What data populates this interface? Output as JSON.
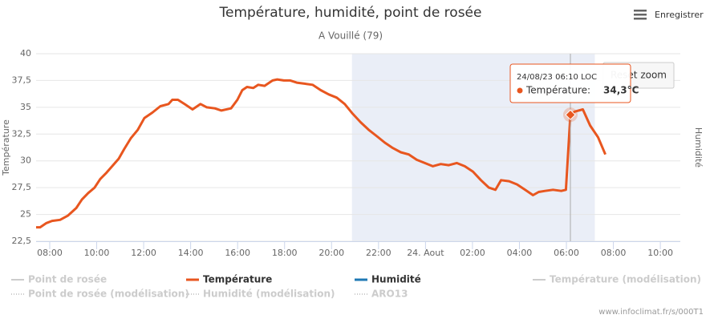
{
  "chart_data": {
    "type": "line",
    "title": "Température, humidité, point de rosée",
    "subtitle": "A Vouillé (79)",
    "y_label": "Température",
    "y2_label": "Humidité",
    "menu_label": "Enregistrer",
    "reset_label": "Reset zoom",
    "credits": "www.infoclimat.fr/s/000T1",
    "xlim": [
      7.42,
      34.85
    ],
    "ylim": [
      22.5,
      40
    ],
    "xticks": [
      {
        "value": 8,
        "label": "08:00"
      },
      {
        "value": 10,
        "label": "10:00"
      },
      {
        "value": 12,
        "label": "12:00"
      },
      {
        "value": 14,
        "label": "14:00"
      },
      {
        "value": 16,
        "label": "16:00"
      },
      {
        "value": 18,
        "label": "18:00"
      },
      {
        "value": 20,
        "label": "20:00"
      },
      {
        "value": 22,
        "label": "22:00"
      },
      {
        "value": 24,
        "label": "24. Aout"
      },
      {
        "value": 26,
        "label": "02:00"
      },
      {
        "value": 28,
        "label": "04:00"
      },
      {
        "value": 30,
        "label": "06:00"
      },
      {
        "value": 32,
        "label": "08:00"
      },
      {
        "value": 34,
        "label": "10:00"
      }
    ],
    "yticks": [
      {
        "value": 22.5,
        "label": "22,5"
      },
      25,
      {
        "value": 27.5,
        "label": "27,5"
      },
      30,
      {
        "value": 32.5,
        "label": "32,5"
      },
      35,
      {
        "value": 37.5,
        "label": "37,5"
      },
      40
    ],
    "grid": true,
    "selection": [
      20.87,
      31.21
    ],
    "x": [
      7.42,
      7.59,
      7.86,
      8.1,
      8.44,
      8.78,
      9.13,
      9.37,
      9.64,
      9.91,
      10.15,
      10.42,
      10.66,
      10.94,
      11.17,
      11.45,
      11.75,
      12.03,
      12.37,
      12.71,
      13.06,
      13.22,
      13.46,
      13.74,
      14.08,
      14.42,
      14.69,
      15.03,
      15.31,
      15.72,
      15.99,
      16.2,
      16.4,
      16.67,
      16.88,
      17.15,
      17.49,
      17.69,
      17.97,
      18.24,
      18.52,
      18.85,
      19.19,
      19.54,
      19.88,
      20.22,
      20.56,
      20.9,
      21.24,
      21.58,
      21.93,
      22.27,
      22.61,
      22.95,
      23.29,
      23.63,
      23.97,
      24.31,
      24.65,
      24.99,
      25.33,
      25.67,
      26.02,
      26.36,
      26.7,
      26.98,
      27.22,
      27.56,
      27.9,
      28.24,
      28.58,
      28.82,
      29.09,
      29.43,
      29.78,
      29.98,
      30.17,
      30.36,
      30.7,
      31.01,
      31.35,
      31.66
    ],
    "series": [
      {
        "name": "Température",
        "color": "#e8561f",
        "values": [
          23.8,
          23.8,
          24.2,
          24.4,
          24.5,
          24.9,
          25.6,
          26.4,
          27.0,
          27.5,
          28.3,
          28.9,
          29.5,
          30.2,
          31.1,
          32.1,
          32.9,
          34.0,
          34.5,
          35.1,
          35.3,
          35.7,
          35.7,
          35.3,
          34.8,
          35.3,
          35.0,
          34.9,
          34.7,
          34.9,
          35.7,
          36.6,
          36.9,
          36.8,
          37.1,
          37.0,
          37.5,
          37.6,
          37.5,
          37.5,
          37.3,
          37.2,
          37.1,
          36.6,
          36.2,
          35.9,
          35.3,
          34.4,
          33.6,
          32.9,
          32.3,
          31.7,
          31.2,
          30.8,
          30.6,
          30.1,
          29.8,
          29.5,
          29.7,
          29.6,
          29.8,
          29.5,
          29.0,
          28.2,
          27.5,
          27.3,
          28.2,
          28.1,
          27.8,
          27.3,
          26.8,
          27.1,
          27.2,
          27.3,
          27.2,
          27.3,
          34.3,
          34.6,
          34.8,
          33.3,
          32.2,
          30.6
        ]
      }
    ],
    "legend": [
      {
        "name": "Point de rosée",
        "color": "#cccccc",
        "visible": false
      },
      {
        "name": "Température",
        "color": "#e8561f",
        "visible": true
      },
      {
        "name": "Humidité",
        "color": "#1f78b4",
        "visible": true
      },
      {
        "name": "Température (modélisation)",
        "color": "#cccccc",
        "visible": false
      },
      {
        "name": "Point de rosée (modélisation)",
        "color": "#cccccc",
        "visible": false
      },
      {
        "name": "Humidité (modélisation)",
        "color": "#cccccc",
        "visible": false
      },
      {
        "name": "ARO13",
        "color": "#cccccc",
        "visible": false
      }
    ],
    "tooltip": {
      "x": 30.17,
      "value": 34.3,
      "date": "24/08/23 06:10 LOC",
      "label": "Température:",
      "value_label": "34,3°C"
    }
  }
}
